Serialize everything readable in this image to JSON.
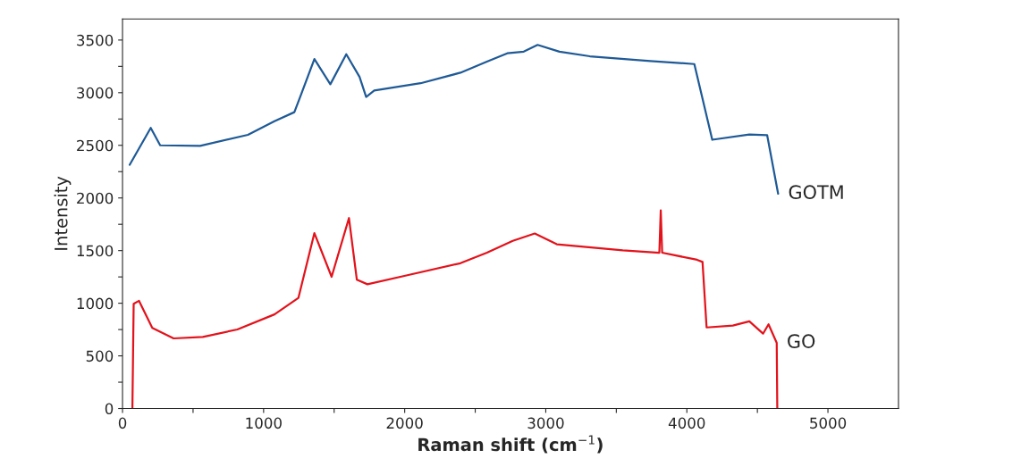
{
  "chart_data": {
    "type": "line",
    "xlabel": "Raman shift (cm$^{−1}$)",
    "ylabel": "Intensity",
    "xlim": [
      0,
      5500
    ],
    "ylim": [
      0,
      3700
    ],
    "xticks": [
      0,
      {
        "value": 500,
        "label": null
      },
      1000,
      {
        "value": 1500,
        "label": null
      },
      2000,
      {
        "value": 2500,
        "label": null
      },
      3000,
      {
        "value": 3500,
        "label": null
      },
      4000,
      {
        "value": 4500,
        "label": null
      },
      5000
    ],
    "yticks": [
      0,
      {
        "value": 250,
        "label": null
      },
      500,
      {
        "value": 750,
        "label": null
      },
      1000,
      {
        "value": 1250,
        "label": null
      },
      1500,
      {
        "value": 1750,
        "label": null
      },
      2000,
      {
        "value": 2250,
        "label": null
      },
      2500,
      {
        "value": 2750,
        "label": null
      },
      3000,
      {
        "value": 3250,
        "label": null
      },
      3500
    ],
    "grid": false,
    "legend": false,
    "marker": "none",
    "line_style": "solid",
    "series": [
      {
        "color": "#1f5a96",
        "x": [
          51,
          200,
          267,
          550,
          889,
          1077,
          1218,
          1265,
          1360,
          1473,
          1586,
          1680,
          1727,
          1784,
          2113,
          2395,
          2583,
          2727,
          2844,
          2942,
          3097,
          3312,
          3741,
          4053,
          4180,
          4443,
          4569,
          4647
        ],
        "values": [
          2315,
          2666,
          2500,
          2495,
          2600,
          2730,
          2815,
          2980,
          3320,
          3080,
          3365,
          3150,
          2960,
          3020,
          3090,
          3190,
          3295,
          3374,
          3390,
          3454,
          3390,
          3346,
          3301,
          3272,
          2553,
          2603,
          2597,
          2040
        ]
      },
      {
        "color": "#e3121b",
        "x": [
          70,
          79,
          117,
          211,
          362,
          569,
          814,
          1077,
          1247,
          1360,
          1482,
          1605,
          1661,
          1736,
          2019,
          2395,
          2583,
          2766,
          2922,
          3078,
          3546,
          3805,
          3815,
          3825,
          4072,
          4111,
          4140,
          4326,
          4443,
          4540,
          4579,
          4637,
          4641
        ],
        "values": [
          0,
          994,
          1023,
          766,
          666,
          680,
          751,
          894,
          1051,
          1666,
          1251,
          1809,
          1223,
          1180,
          1266,
          1380,
          1480,
          1592,
          1662,
          1560,
          1502,
          1480,
          1882,
          1480,
          1413,
          1392,
          770,
          788,
          828,
          711,
          800,
          624,
          0
        ]
      }
    ],
    "annotations": [
      {
        "text": "GOTM",
        "x": 4647,
        "y": 2040
      },
      {
        "text": "GO",
        "x": 4637,
        "y": 624
      }
    ]
  }
}
